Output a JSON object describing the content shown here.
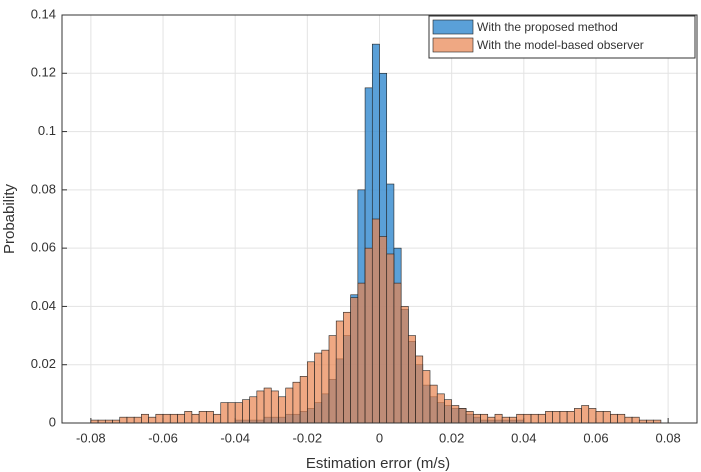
{
  "chart_data": {
    "type": "histogram",
    "xlabel": "Estimation error (m/s)",
    "ylabel": "Probability",
    "bins": [
      -0.08,
      -0.078,
      -0.076,
      -0.074,
      -0.072,
      -0.07,
      -0.068,
      -0.066,
      -0.064,
      -0.062,
      -0.06,
      -0.058,
      -0.056,
      -0.054,
      -0.052,
      -0.05,
      -0.048,
      -0.046,
      -0.044,
      -0.042,
      -0.04,
      -0.038,
      -0.036,
      -0.034,
      -0.032,
      -0.03,
      -0.028,
      -0.026,
      -0.024,
      -0.022,
      -0.02,
      -0.018,
      -0.016,
      -0.014,
      -0.012,
      -0.01,
      -0.008,
      -0.006,
      -0.004,
      -0.002,
      0,
      0.002,
      0.004,
      0.006,
      0.008,
      0.01,
      0.012,
      0.014,
      0.016,
      0.018,
      0.02,
      0.022,
      0.024,
      0.026,
      0.028,
      0.03,
      0.032,
      0.034,
      0.036,
      0.038,
      0.04,
      0.042,
      0.044,
      0.046,
      0.048,
      0.05,
      0.052,
      0.054,
      0.056,
      0.058,
      0.06,
      0.062,
      0.064,
      0.066,
      0.068,
      0.07,
      0.072,
      0.074,
      0.076,
      0.078,
      0.08
    ],
    "series": [
      {
        "name": "With the proposed method",
        "color": "#3d8fd1",
        "values": [
          0,
          0,
          0,
          0,
          0,
          0,
          0,
          0,
          0,
          0,
          0,
          0,
          0,
          0,
          0,
          0,
          0,
          0,
          0,
          0,
          0.001,
          0.001,
          0.001,
          0.001,
          0.002,
          0.002,
          0.002,
          0.003,
          0.003,
          0.004,
          0.005,
          0.007,
          0.01,
          0.015,
          0.022,
          0.03,
          0.044,
          0.08,
          0.115,
          0.13,
          0.12,
          0.082,
          0.06,
          0.039,
          0.028,
          0.02,
          0.013,
          0.009,
          0.007,
          0.006,
          0.005,
          0.005,
          0.003,
          0.002,
          0.001,
          0.001,
          0.001,
          0.001,
          0.001,
          0.001,
          0,
          0,
          0,
          0,
          0,
          0,
          0,
          0,
          0,
          0,
          0,
          0,
          0,
          0,
          0,
          0,
          0,
          0,
          0,
          0
        ]
      },
      {
        "name": "With the model-based observer",
        "color": "#e8834f",
        "values": [
          0.001,
          0.001,
          0.001,
          0.001,
          0.002,
          0.002,
          0.002,
          0.003,
          0.002,
          0.003,
          0.003,
          0.003,
          0.003,
          0.004,
          0.003,
          0.004,
          0.004,
          0.003,
          0.007,
          0.007,
          0.007,
          0.008,
          0.009,
          0.011,
          0.012,
          0.011,
          0.009,
          0.012,
          0.014,
          0.016,
          0.021,
          0.024,
          0.025,
          0.03,
          0.035,
          0.038,
          0.043,
          0.048,
          0.06,
          0.07,
          0.064,
          0.058,
          0.048,
          0.04,
          0.03,
          0.023,
          0.018,
          0.013,
          0.01,
          0.008,
          0.006,
          0.005,
          0.004,
          0.003,
          0.003,
          0.002,
          0.003,
          0.002,
          0.002,
          0.003,
          0.003,
          0.003,
          0.003,
          0.004,
          0.004,
          0.004,
          0.004,
          0.005,
          0.006,
          0.005,
          0.004,
          0.004,
          0.003,
          0.003,
          0.002,
          0.002,
          0.001,
          0.001,
          0.001,
          0
        ]
      }
    ],
    "xlim": [
      -0.088,
      0.088
    ],
    "ylim": [
      0,
      0.14
    ],
    "xticks": [
      -0.08,
      -0.06,
      -0.04,
      -0.02,
      0,
      0.02,
      0.04,
      0.06,
      0.08
    ],
    "yticks": [
      0,
      0.02,
      0.04,
      0.06,
      0.08,
      0.1,
      0.12,
      0.14
    ],
    "grid": true,
    "legend": "top-right"
  }
}
